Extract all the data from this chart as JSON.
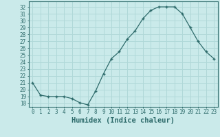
{
  "x": [
    0,
    1,
    2,
    3,
    4,
    5,
    6,
    7,
    8,
    9,
    10,
    11,
    12,
    13,
    14,
    15,
    16,
    17,
    18,
    19,
    20,
    21,
    22,
    23
  ],
  "y": [
    21.0,
    19.2,
    19.0,
    19.0,
    19.0,
    18.7,
    18.1,
    17.8,
    19.8,
    22.3,
    24.5,
    25.5,
    27.3,
    28.5,
    30.3,
    31.5,
    32.0,
    32.0,
    32.0,
    31.0,
    29.0,
    27.0,
    25.5,
    24.5
  ],
  "xlabel": "Humidex (Indice chaleur)",
  "line_color": "#2e6b6b",
  "marker": "+",
  "marker_size": 3.5,
  "marker_lw": 1.0,
  "bg_color": "#caeaea",
  "grid_color": "#b0d8d8",
  "ylim": [
    17.5,
    32.8
  ],
  "xlim": [
    -0.5,
    23.5
  ],
  "yticks": [
    18,
    19,
    20,
    21,
    22,
    23,
    24,
    25,
    26,
    27,
    28,
    29,
    30,
    31,
    32
  ],
  "xticks": [
    0,
    1,
    2,
    3,
    4,
    5,
    6,
    7,
    8,
    9,
    10,
    11,
    12,
    13,
    14,
    15,
    16,
    17,
    18,
    19,
    20,
    21,
    22,
    23
  ],
  "tick_label_fontsize": 5.5,
  "xlabel_fontsize": 7.5,
  "axis_color": "#2e6b6b",
  "line_width": 0.9
}
